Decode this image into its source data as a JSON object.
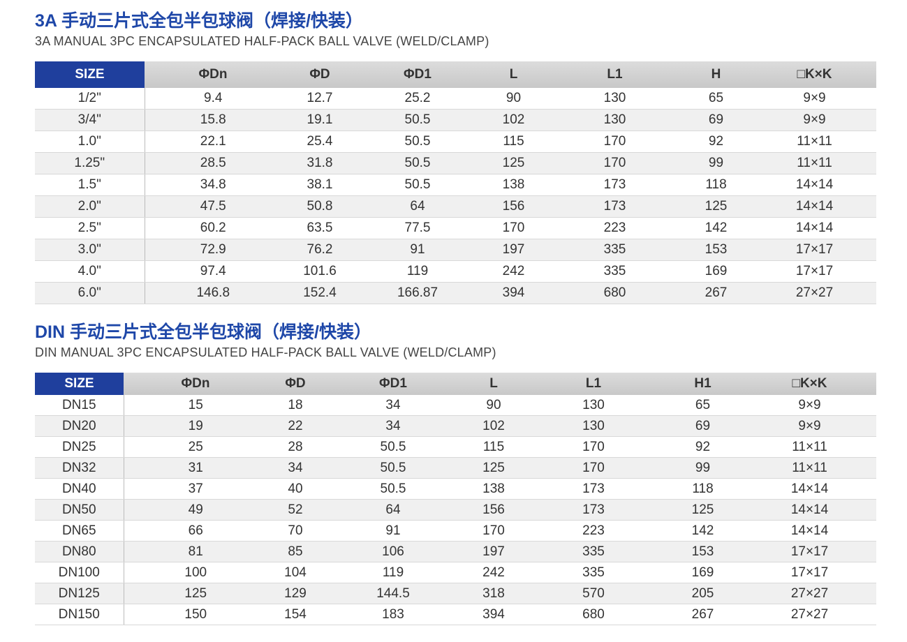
{
  "tables": [
    {
      "title": "3A 手动三片式全包半包球阀（焊接/快装）",
      "subtitle": "3A MANUAL 3PC ENCAPSULATED HALF-PACK BALL VALVE (WELD/CLAMP)",
      "headers": [
        "SIZE",
        "ΦDn",
        "ΦD",
        "ΦD1",
        "L",
        "L1",
        "H",
        "□K×K"
      ],
      "rows": [
        [
          "1/2\"",
          "9.4",
          "12.7",
          "25.2",
          "90",
          "130",
          "65",
          "9×9"
        ],
        [
          "3/4\"",
          "15.8",
          "19.1",
          "50.5",
          "102",
          "130",
          "69",
          "9×9"
        ],
        [
          "1.0\"",
          "22.1",
          "25.4",
          "50.5",
          "115",
          "170",
          "92",
          "11×11"
        ],
        [
          "1.25\"",
          "28.5",
          "31.8",
          "50.5",
          "125",
          "170",
          "99",
          "11×11"
        ],
        [
          "1.5\"",
          "34.8",
          "38.1",
          "50.5",
          "138",
          "173",
          "118",
          "14×14"
        ],
        [
          "2.0\"",
          "47.5",
          "50.8",
          "64",
          "156",
          "173",
          "125",
          "14×14"
        ],
        [
          "2.5\"",
          "60.2",
          "63.5",
          "77.5",
          "170",
          "223",
          "142",
          "14×14"
        ],
        [
          "3.0\"",
          "72.9",
          "76.2",
          "91",
          "197",
          "335",
          "153",
          "17×17"
        ],
        [
          "4.0\"",
          "97.4",
          "101.6",
          "119",
          "242",
          "335",
          "169",
          "17×17"
        ],
        [
          "6.0\"",
          "146.8",
          "152.4",
          "166.87",
          "394",
          "680",
          "267",
          "27×27"
        ]
      ]
    },
    {
      "title": "DIN 手动三片式全包半包球阀（焊接/快装）",
      "subtitle": "DIN MANUAL 3PC ENCAPSULATED HALF-PACK BALL VALVE (WELD/CLAMP)",
      "headers": [
        "SIZE",
        "ΦDn",
        "ΦD",
        "ΦD1",
        "L",
        "L1",
        "H1",
        "□K×K"
      ],
      "rows": [
        [
          "DN15",
          "15",
          "18",
          "34",
          "90",
          "130",
          "65",
          "9×9"
        ],
        [
          "DN20",
          "19",
          "22",
          "34",
          "102",
          "130",
          "69",
          "9×9"
        ],
        [
          "DN25",
          "25",
          "28",
          "50.5",
          "115",
          "170",
          "92",
          "11×11"
        ],
        [
          "DN32",
          "31",
          "34",
          "50.5",
          "125",
          "170",
          "99",
          "11×11"
        ],
        [
          "DN40",
          "37",
          "40",
          "50.5",
          "138",
          "173",
          "118",
          "14×14"
        ],
        [
          "DN50",
          "49",
          "52",
          "64",
          "156",
          "173",
          "125",
          "14×14"
        ],
        [
          "DN65",
          "66",
          "70",
          "91",
          "170",
          "223",
          "142",
          "14×14"
        ],
        [
          "DN80",
          "81",
          "85",
          "106",
          "197",
          "335",
          "153",
          "17×17"
        ],
        [
          "DN100",
          "100",
          "104",
          "119",
          "242",
          "335",
          "169",
          "17×17"
        ],
        [
          "DN125",
          "125",
          "129",
          "144.5",
          "318",
          "570",
          "205",
          "27×27"
        ],
        [
          "DN150",
          "150",
          "154",
          "183",
          "394",
          "680",
          "267",
          "27×27"
        ]
      ]
    }
  ]
}
